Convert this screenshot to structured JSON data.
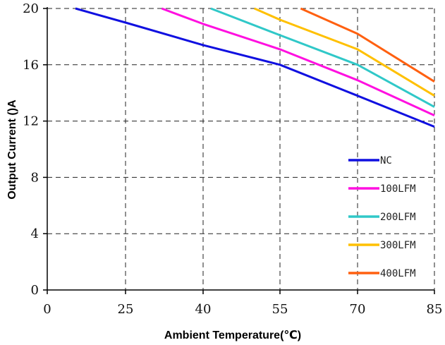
{
  "chart_data": {
    "type": "line",
    "title": "",
    "xlabel": "Ambient Temperature(℃)",
    "ylabel": "Output Current ()A",
    "x_ticks": [
      0,
      25,
      40,
      55,
      70,
      85
    ],
    "y_ticks": [
      0,
      4,
      8,
      12,
      16,
      20
    ],
    "ylim": [
      0,
      20
    ],
    "grid": true,
    "legend_position": "bottom-right",
    "series": [
      {
        "name": "NC",
        "color": "#1010e0",
        "points": [
          [
            9,
            20
          ],
          [
            25,
            19
          ],
          [
            40,
            17.4
          ],
          [
            55,
            16
          ],
          [
            70,
            13.8
          ],
          [
            85,
            11.6
          ]
        ]
      },
      {
        "name": "100LFM",
        "color": "#ff10e0",
        "points": [
          [
            32,
            20
          ],
          [
            40,
            18.9
          ],
          [
            55,
            17.1
          ],
          [
            70,
            14.9
          ],
          [
            85,
            12.4
          ]
        ]
      },
      {
        "name": "200LFM",
        "color": "#30c8c8",
        "points": [
          [
            41.5,
            20
          ],
          [
            55,
            18.1
          ],
          [
            70,
            16
          ],
          [
            85,
            13
          ]
        ]
      },
      {
        "name": "300LFM",
        "color": "#ffc000",
        "points": [
          [
            50,
            20
          ],
          [
            55,
            19.2
          ],
          [
            70,
            17.1
          ],
          [
            85,
            13.8
          ]
        ]
      },
      {
        "name": "400LFM",
        "color": "#ff6010",
        "points": [
          [
            59,
            20
          ],
          [
            70,
            18.2
          ],
          [
            85,
            14.8
          ]
        ]
      }
    ]
  }
}
